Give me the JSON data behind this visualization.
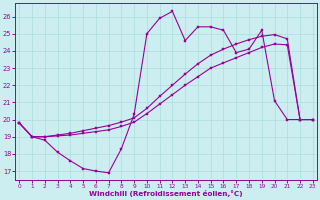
{
  "xlabel": "Windchill (Refroidissement éolien,°C)",
  "bg_color": "#cceef0",
  "grid_color": "#aadddd",
  "line_color": "#990099",
  "x_ticks": [
    0,
    1,
    2,
    3,
    4,
    5,
    6,
    7,
    8,
    9,
    10,
    11,
    12,
    13,
    14,
    15,
    16,
    17,
    18,
    19,
    20,
    21,
    22,
    23
  ],
  "y_ticks": [
    17,
    18,
    19,
    20,
    21,
    22,
    23,
    24,
    25,
    26
  ],
  "xlim": [
    -0.3,
    23.3
  ],
  "ylim": [
    16.5,
    26.8
  ],
  "curve1_x": [
    0,
    1,
    2,
    3,
    4,
    5,
    6,
    7,
    8,
    9,
    10,
    11,
    12,
    13,
    14,
    15,
    16,
    17,
    18,
    19,
    20,
    21,
    22,
    23
  ],
  "curve1_y": [
    19.8,
    19.0,
    18.8,
    18.1,
    17.6,
    17.15,
    17.0,
    16.9,
    18.3,
    20.3,
    25.0,
    25.9,
    26.3,
    24.6,
    25.4,
    25.4,
    25.2,
    23.9,
    24.1,
    25.2,
    21.1,
    20.0,
    20.0,
    20.0
  ],
  "curve2_x": [
    0,
    1,
    2,
    3,
    4,
    5,
    6,
    7,
    8,
    9,
    10,
    11,
    12,
    13,
    14,
    15,
    16,
    17,
    18,
    19,
    20,
    21,
    22,
    23
  ],
  "curve2_y": [
    19.8,
    19.0,
    19.0,
    19.05,
    19.1,
    19.2,
    19.3,
    19.4,
    19.6,
    19.85,
    20.35,
    20.9,
    21.45,
    22.0,
    22.5,
    23.0,
    23.3,
    23.6,
    23.9,
    24.2,
    24.4,
    24.35,
    20.0,
    20.0
  ],
  "curve3_x": [
    0,
    1,
    2,
    3,
    4,
    5,
    6,
    7,
    8,
    9,
    10,
    11,
    12,
    13,
    14,
    15,
    16,
    17,
    18,
    19,
    20,
    21,
    22,
    23
  ],
  "curve3_y": [
    19.8,
    19.0,
    19.0,
    19.1,
    19.2,
    19.35,
    19.5,
    19.65,
    19.85,
    20.1,
    20.65,
    21.35,
    22.0,
    22.65,
    23.25,
    23.75,
    24.1,
    24.4,
    24.65,
    24.85,
    24.95,
    24.7,
    20.0,
    20.0
  ]
}
